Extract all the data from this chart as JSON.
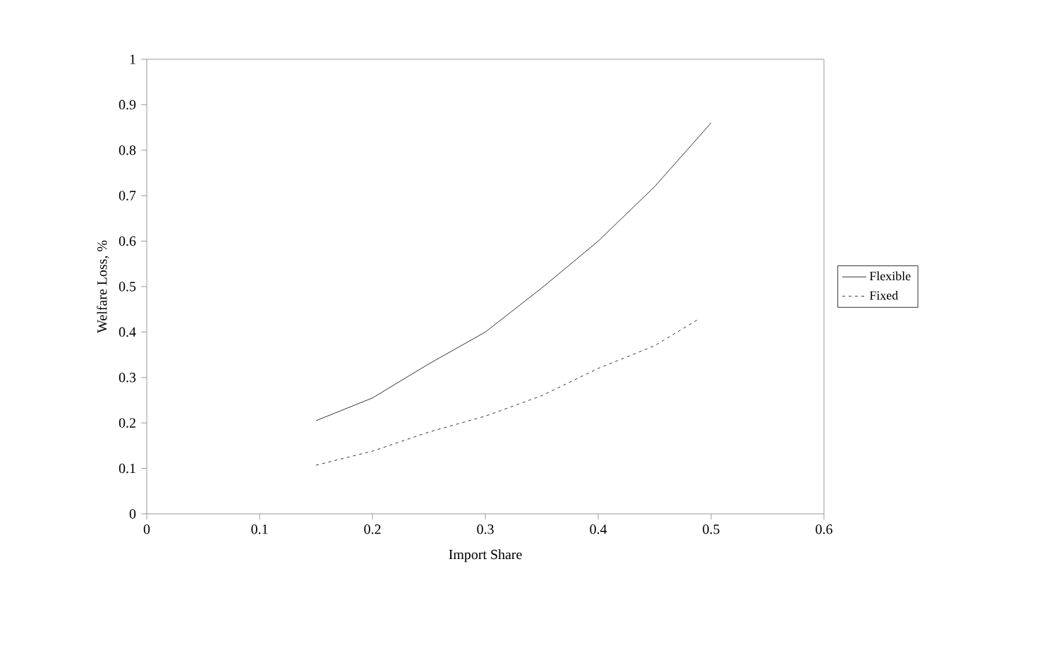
{
  "chart_data": {
    "type": "line",
    "xlabel": "Import Share",
    "ylabel": "Welfare Loss, %",
    "xlim": [
      0,
      0.6
    ],
    "xticks": [
      0,
      0.1,
      0.2,
      0.3,
      0.4,
      0.5,
      0.6
    ],
    "ylim": [
      0,
      1
    ],
    "yticks": [
      0,
      0.1,
      0.2,
      0.3,
      0.4,
      0.5,
      0.6,
      0.7,
      0.8,
      0.9,
      1
    ],
    "grid": false,
    "legend": "right",
    "marker": "none",
    "series": [
      {
        "name": "Flexible",
        "color": "#000000",
        "line_style": "solid",
        "x": [
          0.15,
          0.2,
          0.25,
          0.3,
          0.35,
          0.4,
          0.45,
          0.5
        ],
        "values": [
          0.205,
          0.255,
          0.33,
          0.4,
          0.497,
          0.6,
          0.72,
          0.86
        ]
      },
      {
        "name": "Fixed",
        "color": "#000000",
        "line_style": "dotted",
        "x": [
          0.15,
          0.2,
          0.25,
          0.3,
          0.35,
          0.4,
          0.45,
          0.49
        ],
        "values": [
          0.107,
          0.138,
          0.18,
          0.215,
          0.26,
          0.32,
          0.37,
          0.43
        ]
      }
    ]
  }
}
